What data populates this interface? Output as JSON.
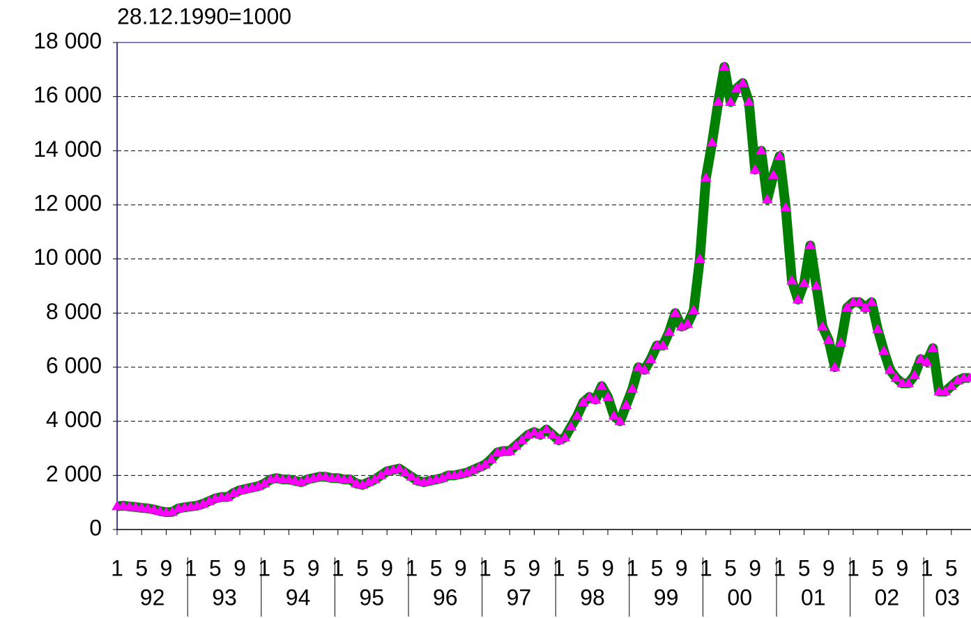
{
  "chart_data": {
    "type": "line",
    "title": "28.12.1990=1000",
    "categories": [
      "1",
      null,
      null,
      null,
      "5",
      null,
      null,
      null,
      "9",
      null,
      null,
      null,
      "1",
      null,
      null,
      null,
      "5",
      null,
      null,
      null,
      "9",
      null,
      null,
      null,
      "1",
      null,
      null,
      null,
      "5",
      null,
      null,
      null,
      "9",
      null,
      null,
      null,
      "1",
      null,
      null,
      null,
      "5",
      null,
      null,
      null,
      "9",
      null,
      null,
      null,
      "1",
      null,
      null,
      null,
      "5",
      null,
      null,
      null,
      "9",
      null,
      null,
      null,
      "1",
      null,
      null,
      null,
      "5",
      null,
      null,
      null,
      "9",
      null,
      null,
      null,
      "1",
      null,
      null,
      null,
      "5",
      null,
      null,
      null,
      "9",
      null,
      null,
      null,
      "1",
      null,
      null,
      null,
      "5",
      null,
      null,
      null,
      "9",
      null,
      null,
      null,
      "1",
      null,
      null,
      null,
      "5",
      null,
      null,
      null,
      "9",
      null,
      null,
      null,
      "1",
      null,
      null,
      null,
      "5",
      null,
      null,
      null,
      "9",
      null,
      null,
      null,
      "1",
      null,
      null,
      null,
      "5",
      null,
      null,
      null,
      "9",
      null,
      null,
      null,
      "1",
      null,
      null,
      null,
      "5",
      null,
      null,
      null
    ],
    "years": [
      "92",
      "93",
      "94",
      "95",
      "96",
      "97",
      "98",
      "99",
      "00",
      "01",
      "02",
      "03"
    ],
    "values": [
      860,
      880,
      850,
      830,
      800,
      780,
      740,
      680,
      640,
      650,
      780,
      820,
      850,
      880,
      950,
      1050,
      1150,
      1200,
      1200,
      1350,
      1450,
      1500,
      1550,
      1600,
      1700,
      1850,
      1900,
      1850,
      1850,
      1800,
      1750,
      1850,
      1900,
      1950,
      1950,
      1900,
      1900,
      1850,
      1850,
      1700,
      1650,
      1750,
      1850,
      2000,
      2150,
      2200,
      2250,
      2100,
      1950,
      1800,
      1750,
      1800,
      1850,
      1900,
      2000,
      2000,
      2050,
      2100,
      2200,
      2300,
      2400,
      2600,
      2850,
      2900,
      2900,
      3100,
      3300,
      3500,
      3600,
      3500,
      3700,
      3500,
      3300,
      3400,
      3800,
      4200,
      4700,
      4900,
      4800,
      5300,
      4900,
      4200,
      4000,
      4600,
      5200,
      6000,
      5900,
      6300,
      6800,
      6800,
      7300,
      8000,
      7500,
      7600,
      8100,
      10000,
      13000,
      14300,
      15800,
      17100,
      15800,
      16300,
      16500,
      15800,
      13300,
      14000,
      12200,
      13100,
      13800,
      11900,
      9200,
      8500,
      9100,
      10500,
      9000,
      7500,
      7000,
      6000,
      6900,
      8200,
      8400,
      8400,
      8200,
      8400,
      7400,
      6600,
      5900,
      5600,
      5400,
      5400,
      5700,
      6300,
      6200,
      6700,
      5100,
      5100,
      5300,
      5500,
      5600,
      5600
    ],
    "color": "#008000",
    "marker_color": "#ff00ff",
    "ylim": [
      0,
      18000
    ],
    "yticks": [
      0,
      {
        "value": 2000,
        "label": "2 000"
      },
      {
        "value": 4000,
        "label": "4 000"
      },
      {
        "value": 6000,
        "label": "6 000"
      },
      {
        "value": 8000,
        "label": "8 000"
      },
      {
        "value": 10000,
        "label": "10 000"
      },
      {
        "value": 12000,
        "label": "12 000"
      },
      {
        "value": 14000,
        "label": "14 000"
      },
      {
        "value": 16000,
        "label": "16 000"
      },
      {
        "value": 18000,
        "label": "18 000"
      }
    ],
    "grid": true
  }
}
